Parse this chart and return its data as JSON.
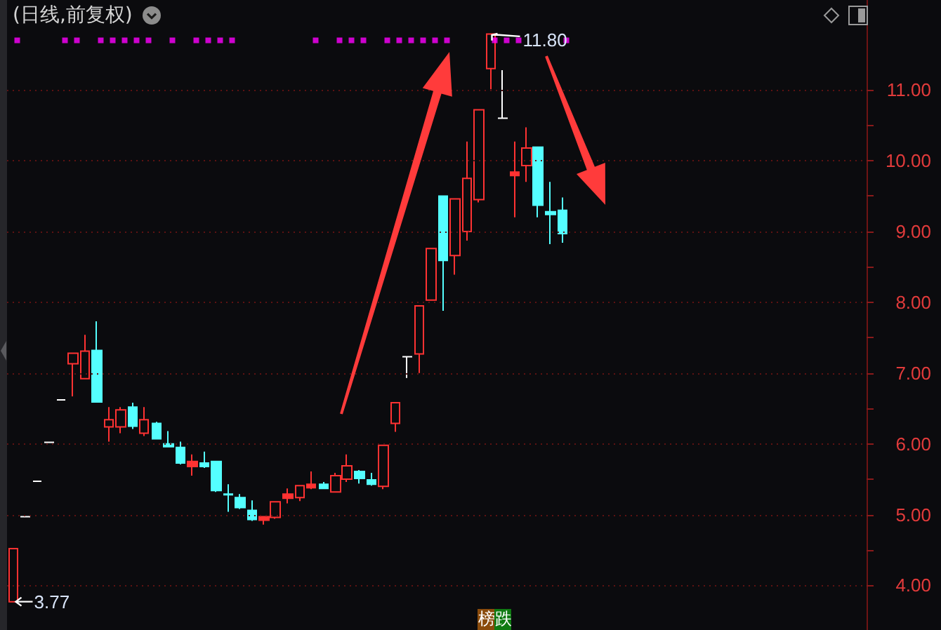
{
  "chart_data": {
    "type": "candlestick",
    "title": "(日线,前复权)",
    "categories": [
      null,
      null,
      null,
      null,
      null,
      null,
      null,
      null,
      null,
      null,
      null,
      null,
      null,
      null,
      null,
      null,
      null,
      null,
      null,
      null,
      null,
      null,
      null,
      null,
      null,
      null,
      null,
      null,
      null,
      null,
      null,
      null,
      null,
      null,
      null,
      null,
      null,
      null,
      null,
      null,
      null,
      null,
      null,
      null,
      null,
      null,
      null,
      null,
      null,
      null,
      null,
      null,
      null,
      null,
      null,
      null,
      null,
      null,
      null,
      null,
      null,
      null,
      null,
      null,
      null,
      null,
      null,
      null,
      null,
      null,
      null,
      null
    ],
    "ohlc": [
      [
        3.77,
        4.52,
        3.77,
        4.52
      ],
      [
        4.97,
        4.97,
        4.97,
        4.97
      ],
      [
        5.47,
        5.47,
        5.47,
        5.47
      ],
      [
        6.02,
        6.02,
        6.02,
        6.02
      ],
      [
        6.62,
        6.62,
        6.62,
        6.62
      ],
      [
        7.13,
        7.28,
        6.67,
        7.28
      ],
      [
        6.92,
        7.54,
        6.91,
        7.31
      ],
      [
        7.32,
        7.73,
        6.59,
        6.59
      ],
      [
        6.24,
        6.52,
        6.03,
        6.34
      ],
      [
        6.24,
        6.52,
        6.15,
        6.48
      ],
      [
        6.52,
        6.58,
        6.21,
        6.25
      ],
      [
        6.15,
        6.52,
        6.11,
        6.34
      ],
      [
        6.29,
        6.31,
        6.06,
        6.07
      ],
      [
        6.0,
        6.18,
        5.96,
        5.96
      ],
      [
        5.95,
        6.03,
        5.71,
        5.73
      ],
      [
        5.68,
        5.85,
        5.55,
        5.75
      ],
      [
        5.73,
        5.89,
        5.66,
        5.68
      ],
      [
        5.75,
        5.75,
        5.32,
        5.34
      ],
      [
        5.29,
        5.43,
        5.04,
        5.28
      ],
      [
        5.24,
        5.29,
        5.08,
        5.1
      ],
      [
        5.06,
        5.2,
        4.91,
        4.93
      ],
      [
        4.92,
        4.97,
        4.86,
        4.97
      ],
      [
        4.96,
        5.18,
        4.94,
        5.18
      ],
      [
        5.23,
        5.37,
        5.16,
        5.29
      ],
      [
        5.24,
        5.41,
        5.19,
        5.41
      ],
      [
        5.38,
        5.61,
        5.36,
        5.43
      ],
      [
        5.43,
        5.46,
        5.36,
        5.37
      ],
      [
        5.32,
        5.59,
        5.32,
        5.55
      ],
      [
        5.5,
        5.85,
        5.46,
        5.69
      ],
      [
        5.61,
        5.63,
        5.44,
        5.51
      ],
      [
        5.49,
        5.59,
        5.41,
        5.43
      ],
      [
        5.4,
        5.98,
        5.36,
        5.98
      ],
      [
        6.29,
        6.58,
        6.17,
        6.58
      ],
      [
        7.23,
        7.23,
        6.93,
        7.23
      ],
      [
        7.27,
        7.95,
        7.0,
        7.95
      ],
      [
        8.03,
        8.76,
        8.03,
        8.76
      ],
      [
        9.5,
        9.5,
        7.88,
        8.59
      ],
      [
        8.66,
        9.46,
        8.39,
        9.46
      ],
      [
        9.0,
        10.27,
        8.87,
        9.75
      ],
      [
        9.45,
        10.72,
        9.41,
        10.72
      ],
      [
        11.3,
        11.8,
        11.01,
        11.79
      ],
      [
        10.6,
        11.28,
        10.6,
        10.6
      ],
      [
        9.79,
        10.27,
        9.2,
        9.84
      ],
      [
        9.93,
        10.47,
        9.7,
        10.18
      ],
      [
        10.19,
        10.19,
        9.2,
        9.37
      ],
      [
        9.28,
        9.7,
        8.82,
        9.24
      ],
      [
        9.3,
        9.48,
        8.84,
        8.97
      ],
      null,
      null,
      null,
      null,
      null,
      null,
      null,
      null,
      null,
      null,
      null,
      null,
      null,
      null,
      null,
      null,
      null,
      null,
      null,
      null,
      null,
      null,
      null,
      null,
      null
    ],
    "colors": [
      "#ff3232",
      "#ffffff",
      "#ffffff",
      "#ffffff",
      "#ffffff",
      "#ff3232",
      "#ff3232",
      "#54ffff",
      "#ff3232",
      "#ff3232",
      "#54ffff",
      "#ff3232",
      "#54ffff",
      "#54ffff",
      "#54ffff",
      "#ff3232",
      "#54ffff",
      "#54ffff",
      "#54ffff",
      "#54ffff",
      "#54ffff",
      "#ff3232",
      "#ff3232",
      "#ff3232",
      "#ff3232",
      "#ff3232",
      "#54ffff",
      "#ff3232",
      "#ff3232",
      "#54ffff",
      "#54ffff",
      "#ff3232",
      "#ff3232",
      "#ffffff",
      "#ff3232",
      "#ff3232",
      "#54ffff",
      "#ff3232",
      "#ff3232",
      "#ff3232",
      "#ff3232",
      "#ffffff",
      "#ff3232",
      "#ff3232",
      "#54ffff",
      "#54ffff",
      "#54ffff",
      null,
      null,
      null,
      null,
      null,
      null,
      null,
      null,
      null,
      null,
      null,
      null,
      null,
      null,
      null,
      null,
      null,
      null,
      null,
      null,
      null,
      null,
      null,
      null,
      null
    ],
    "series": [
      {
        "type": "scatter",
        "color": "#ff00ff",
        "values": [
          11.7,
          null,
          null,
          null,
          11.7,
          11.7,
          null,
          11.7,
          11.7,
          11.7,
          11.7,
          11.7,
          null,
          11.7,
          null,
          11.7,
          11.7,
          11.7,
          11.7,
          null,
          null,
          null,
          null,
          null,
          null,
          11.7,
          null,
          11.7,
          11.7,
          11.7,
          null,
          11.7,
          11.7,
          11.7,
          11.7,
          11.7,
          11.7,
          null,
          null,
          null,
          11.7,
          11.7,
          11.7,
          null,
          null,
          null,
          11.7,
          null,
          null,
          null,
          null,
          null,
          null,
          null,
          null,
          null,
          null,
          null,
          null,
          null,
          null,
          null,
          null,
          null,
          null,
          null,
          null,
          null,
          null,
          null,
          null,
          null
        ]
      }
    ],
    "marker": "square",
    "ylim": [
      3.37,
      12.27
    ],
    "yticks": [
      {
        "value": 4,
        "label": "4.00"
      },
      {
        "value": 4.5,
        "label": null
      },
      {
        "value": 5,
        "label": "5.00"
      },
      {
        "value": 5.5,
        "label": null
      },
      {
        "value": 6,
        "label": "6.00"
      },
      {
        "value": 6.5,
        "label": null
      },
      {
        "value": 7,
        "label": "7.00"
      },
      {
        "value": 7.5,
        "label": null
      },
      {
        "value": 8,
        "label": "8.00"
      },
      {
        "value": 8.5,
        "label": null
      },
      {
        "value": 9,
        "label": "9.00"
      },
      {
        "value": 9.5,
        "label": null
      },
      {
        "value": 10,
        "label": "10.00"
      },
      {
        "value": 10.5,
        "label": null
      },
      {
        "value": 11,
        "label": "11.00"
      }
    ],
    "tick_labels": "y",
    "grid": "y",
    "annotations": [
      "3.77",
      "11.80",
      "榜",
      "跌"
    ]
  }
}
